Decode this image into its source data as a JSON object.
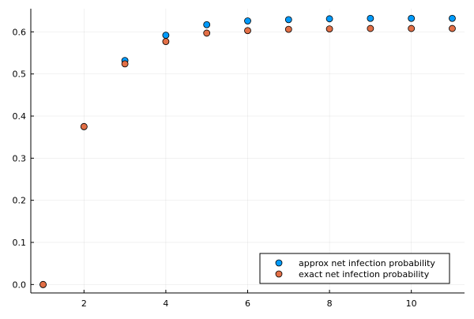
{
  "chart_data": {
    "type": "scatter",
    "title": "",
    "xlabel": "",
    "ylabel": "",
    "xlim": [
      0.7,
      11.3
    ],
    "ylim": [
      -0.02,
      0.655
    ],
    "xticks": [
      2,
      4,
      6,
      8,
      10
    ],
    "xtick_labels": [
      "2",
      "4",
      "6",
      "8",
      "10"
    ],
    "yticks": [
      0.0,
      0.1,
      0.2,
      0.3,
      0.4,
      0.5,
      0.6
    ],
    "ytick_labels": [
      "0.0",
      "0.1",
      "0.2",
      "0.3",
      "0.4",
      "0.5",
      "0.6"
    ],
    "grid": true,
    "legend_position": "bottom-right",
    "series": [
      {
        "name": "approx net infection probability",
        "color": "#009AFA",
        "x": [
          1,
          2,
          3,
          4,
          5,
          6,
          7,
          8,
          9,
          10,
          11
        ],
        "y": [
          0.0,
          0.375,
          0.532,
          0.592,
          0.617,
          0.626,
          0.629,
          0.631,
          0.632,
          0.632,
          0.632
        ]
      },
      {
        "name": "exact net infection probability",
        "color": "#E26F46",
        "x": [
          1,
          2,
          3,
          4,
          5,
          6,
          7,
          8,
          9,
          10,
          11
        ],
        "y": [
          0.0,
          0.375,
          0.524,
          0.577,
          0.597,
          0.603,
          0.606,
          0.607,
          0.608,
          0.608,
          0.608
        ]
      }
    ]
  }
}
